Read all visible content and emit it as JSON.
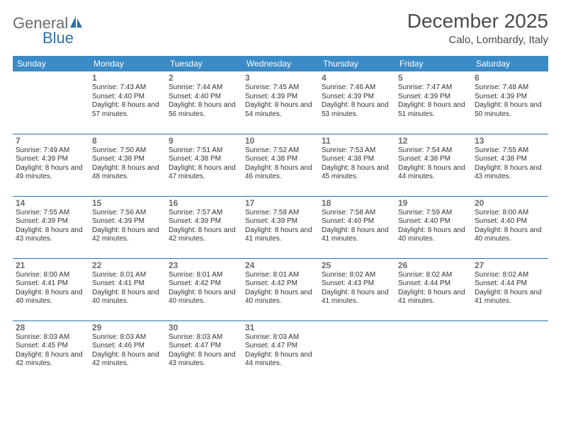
{
  "logo": {
    "text_general": "General",
    "text_blue": "Blue",
    "icon_color": "#2f6fa8"
  },
  "title": "December 2025",
  "location": "Calo, Lombardy, Italy",
  "header_bg": "#3b8bc7",
  "rule_color": "#2f6fa8",
  "daysOfWeek": [
    "Sunday",
    "Monday",
    "Tuesday",
    "Wednesday",
    "Thursday",
    "Friday",
    "Saturday"
  ],
  "weeks": [
    [
      null,
      {
        "n": "1",
        "sr": "7:43 AM",
        "ss": "4:40 PM",
        "dl": "8 hours and 57 minutes."
      },
      {
        "n": "2",
        "sr": "7:44 AM",
        "ss": "4:40 PM",
        "dl": "8 hours and 56 minutes."
      },
      {
        "n": "3",
        "sr": "7:45 AM",
        "ss": "4:39 PM",
        "dl": "8 hours and 54 minutes."
      },
      {
        "n": "4",
        "sr": "7:46 AM",
        "ss": "4:39 PM",
        "dl": "8 hours and 53 minutes."
      },
      {
        "n": "5",
        "sr": "7:47 AM",
        "ss": "4:39 PM",
        "dl": "8 hours and 51 minutes."
      },
      {
        "n": "6",
        "sr": "7:48 AM",
        "ss": "4:39 PM",
        "dl": "8 hours and 50 minutes."
      }
    ],
    [
      {
        "n": "7",
        "sr": "7:49 AM",
        "ss": "4:39 PM",
        "dl": "8 hours and 49 minutes."
      },
      {
        "n": "8",
        "sr": "7:50 AM",
        "ss": "4:38 PM",
        "dl": "8 hours and 48 minutes."
      },
      {
        "n": "9",
        "sr": "7:51 AM",
        "ss": "4:38 PM",
        "dl": "8 hours and 47 minutes."
      },
      {
        "n": "10",
        "sr": "7:52 AM",
        "ss": "4:38 PM",
        "dl": "8 hours and 46 minutes."
      },
      {
        "n": "11",
        "sr": "7:53 AM",
        "ss": "4:38 PM",
        "dl": "8 hours and 45 minutes."
      },
      {
        "n": "12",
        "sr": "7:54 AM",
        "ss": "4:38 PM",
        "dl": "8 hours and 44 minutes."
      },
      {
        "n": "13",
        "sr": "7:55 AM",
        "ss": "4:38 PM",
        "dl": "8 hours and 43 minutes."
      }
    ],
    [
      {
        "n": "14",
        "sr": "7:55 AM",
        "ss": "4:39 PM",
        "dl": "8 hours and 43 minutes."
      },
      {
        "n": "15",
        "sr": "7:56 AM",
        "ss": "4:39 PM",
        "dl": "8 hours and 42 minutes."
      },
      {
        "n": "16",
        "sr": "7:57 AM",
        "ss": "4:39 PM",
        "dl": "8 hours and 42 minutes."
      },
      {
        "n": "17",
        "sr": "7:58 AM",
        "ss": "4:39 PM",
        "dl": "8 hours and 41 minutes."
      },
      {
        "n": "18",
        "sr": "7:58 AM",
        "ss": "4:40 PM",
        "dl": "8 hours and 41 minutes."
      },
      {
        "n": "19",
        "sr": "7:59 AM",
        "ss": "4:40 PM",
        "dl": "8 hours and 40 minutes."
      },
      {
        "n": "20",
        "sr": "8:00 AM",
        "ss": "4:40 PM",
        "dl": "8 hours and 40 minutes."
      }
    ],
    [
      {
        "n": "21",
        "sr": "8:00 AM",
        "ss": "4:41 PM",
        "dl": "8 hours and 40 minutes."
      },
      {
        "n": "22",
        "sr": "8:01 AM",
        "ss": "4:41 PM",
        "dl": "8 hours and 40 minutes."
      },
      {
        "n": "23",
        "sr": "8:01 AM",
        "ss": "4:42 PM",
        "dl": "8 hours and 40 minutes."
      },
      {
        "n": "24",
        "sr": "8:01 AM",
        "ss": "4:42 PM",
        "dl": "8 hours and 40 minutes."
      },
      {
        "n": "25",
        "sr": "8:02 AM",
        "ss": "4:43 PM",
        "dl": "8 hours and 41 minutes."
      },
      {
        "n": "26",
        "sr": "8:02 AM",
        "ss": "4:44 PM",
        "dl": "8 hours and 41 minutes."
      },
      {
        "n": "27",
        "sr": "8:02 AM",
        "ss": "4:44 PM",
        "dl": "8 hours and 41 minutes."
      }
    ],
    [
      {
        "n": "28",
        "sr": "8:03 AM",
        "ss": "4:45 PM",
        "dl": "8 hours and 42 minutes."
      },
      {
        "n": "29",
        "sr": "8:03 AM",
        "ss": "4:46 PM",
        "dl": "8 hours and 42 minutes."
      },
      {
        "n": "30",
        "sr": "8:03 AM",
        "ss": "4:47 PM",
        "dl": "8 hours and 43 minutes."
      },
      {
        "n": "31",
        "sr": "8:03 AM",
        "ss": "4:47 PM",
        "dl": "8 hours and 44 minutes."
      },
      null,
      null,
      null
    ]
  ],
  "labels": {
    "sunrise": "Sunrise:",
    "sunset": "Sunset:",
    "daylight": "Daylight:"
  }
}
